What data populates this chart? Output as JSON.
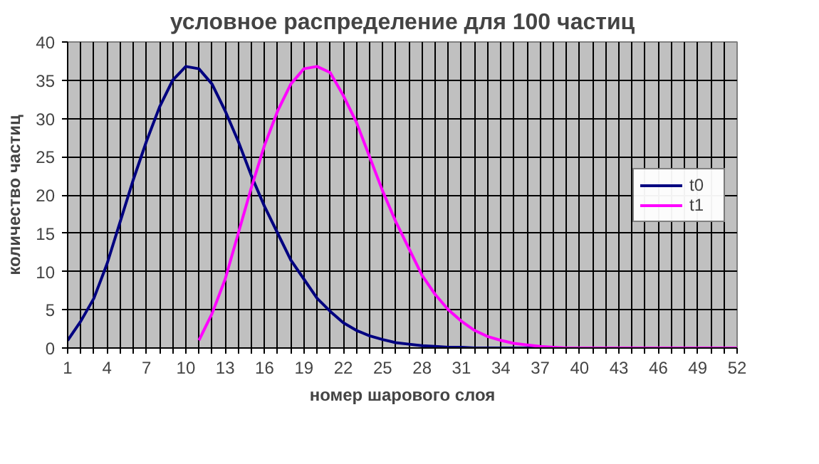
{
  "chart_data": {
    "type": "line",
    "title": "условное распределение для 100 частиц",
    "xlabel": "номер шарового слоя",
    "ylabel": "количество частиц",
    "xlim": [
      1,
      52
    ],
    "ylim": [
      0,
      40
    ],
    "yticks": [
      0,
      5,
      10,
      15,
      20,
      25,
      30,
      35,
      40
    ],
    "xticks": [
      1,
      {
        "value": 2,
        "label": null
      },
      {
        "value": 3,
        "label": null
      },
      4,
      {
        "value": 5,
        "label": null
      },
      {
        "value": 6,
        "label": null
      },
      7,
      {
        "value": 8,
        "label": null
      },
      {
        "value": 9,
        "label": null
      },
      10,
      {
        "value": 11,
        "label": null
      },
      {
        "value": 12,
        "label": null
      },
      13,
      {
        "value": 14,
        "label": null
      },
      {
        "value": 15,
        "label": null
      },
      16,
      {
        "value": 17,
        "label": null
      },
      {
        "value": 18,
        "label": null
      },
      19,
      {
        "value": 20,
        "label": null
      },
      {
        "value": 21,
        "label": null
      },
      22,
      {
        "value": 23,
        "label": null
      },
      {
        "value": 24,
        "label": null
      },
      25,
      {
        "value": 26,
        "label": null
      },
      {
        "value": 27,
        "label": null
      },
      28,
      {
        "value": 29,
        "label": null
      },
      {
        "value": 30,
        "label": null
      },
      31,
      {
        "value": 32,
        "label": null
      },
      {
        "value": 33,
        "label": null
      },
      34,
      {
        "value": 35,
        "label": null
      },
      {
        "value": 36,
        "label": null
      },
      37,
      {
        "value": 38,
        "label": null
      },
      {
        "value": 39,
        "label": null
      },
      40,
      {
        "value": 41,
        "label": null
      },
      {
        "value": 42,
        "label": null
      },
      43,
      {
        "value": 44,
        "label": null
      },
      {
        "value": 45,
        "label": null
      },
      46,
      {
        "value": 47,
        "label": null
      },
      {
        "value": 48,
        "label": null
      },
      49,
      {
        "value": 50,
        "label": null
      },
      {
        "value": 51,
        "label": null
      },
      52
    ],
    "grid": true,
    "legend": "right",
    "marker": "none",
    "line_style": "solid",
    "series": [
      {
        "name": "t0",
        "color": "#000080",
        "x": [
          1,
          2,
          3,
          4,
          5,
          6,
          7,
          8,
          9,
          10,
          11,
          12,
          13,
          14,
          15,
          16,
          17,
          18,
          19,
          20,
          21,
          22,
          23,
          24,
          25,
          26,
          27,
          28,
          29,
          30,
          31,
          32,
          33,
          34,
          35,
          36,
          37,
          38
        ],
        "values": [
          1,
          3.5,
          6.5,
          11,
          16.5,
          22,
          27,
          31.5,
          35,
          36.8,
          36.5,
          34.5,
          31,
          27,
          22.5,
          18.5,
          15,
          11.5,
          9,
          6.5,
          4.8,
          3.3,
          2.3,
          1.6,
          1.1,
          0.7,
          0.5,
          0.3,
          0.2,
          0.1,
          0.1,
          0,
          0,
          0,
          0,
          0,
          0,
          0
        ]
      },
      {
        "name": "t1",
        "color": "#ff00ff",
        "x": [
          11,
          12,
          13,
          14,
          15,
          16,
          17,
          18,
          19,
          20,
          21,
          22,
          23,
          24,
          25,
          26,
          27,
          28,
          29,
          30,
          31,
          32,
          33,
          34,
          35,
          36,
          37,
          38,
          39,
          40,
          41,
          42,
          43,
          44,
          45,
          46,
          47,
          48,
          49,
          50,
          51,
          52
        ],
        "values": [
          1,
          4.5,
          9,
          15,
          21,
          26.5,
          31,
          34.5,
          36.5,
          36.8,
          36,
          33,
          29.5,
          25,
          20.5,
          16.5,
          13,
          9.5,
          7,
          5,
          3.5,
          2.3,
          1.5,
          1,
          0.6,
          0.4,
          0.2,
          0.1,
          0,
          0,
          0,
          0,
          0,
          0,
          0,
          0,
          0,
          0,
          0,
          0,
          0,
          0
        ]
      }
    ]
  }
}
